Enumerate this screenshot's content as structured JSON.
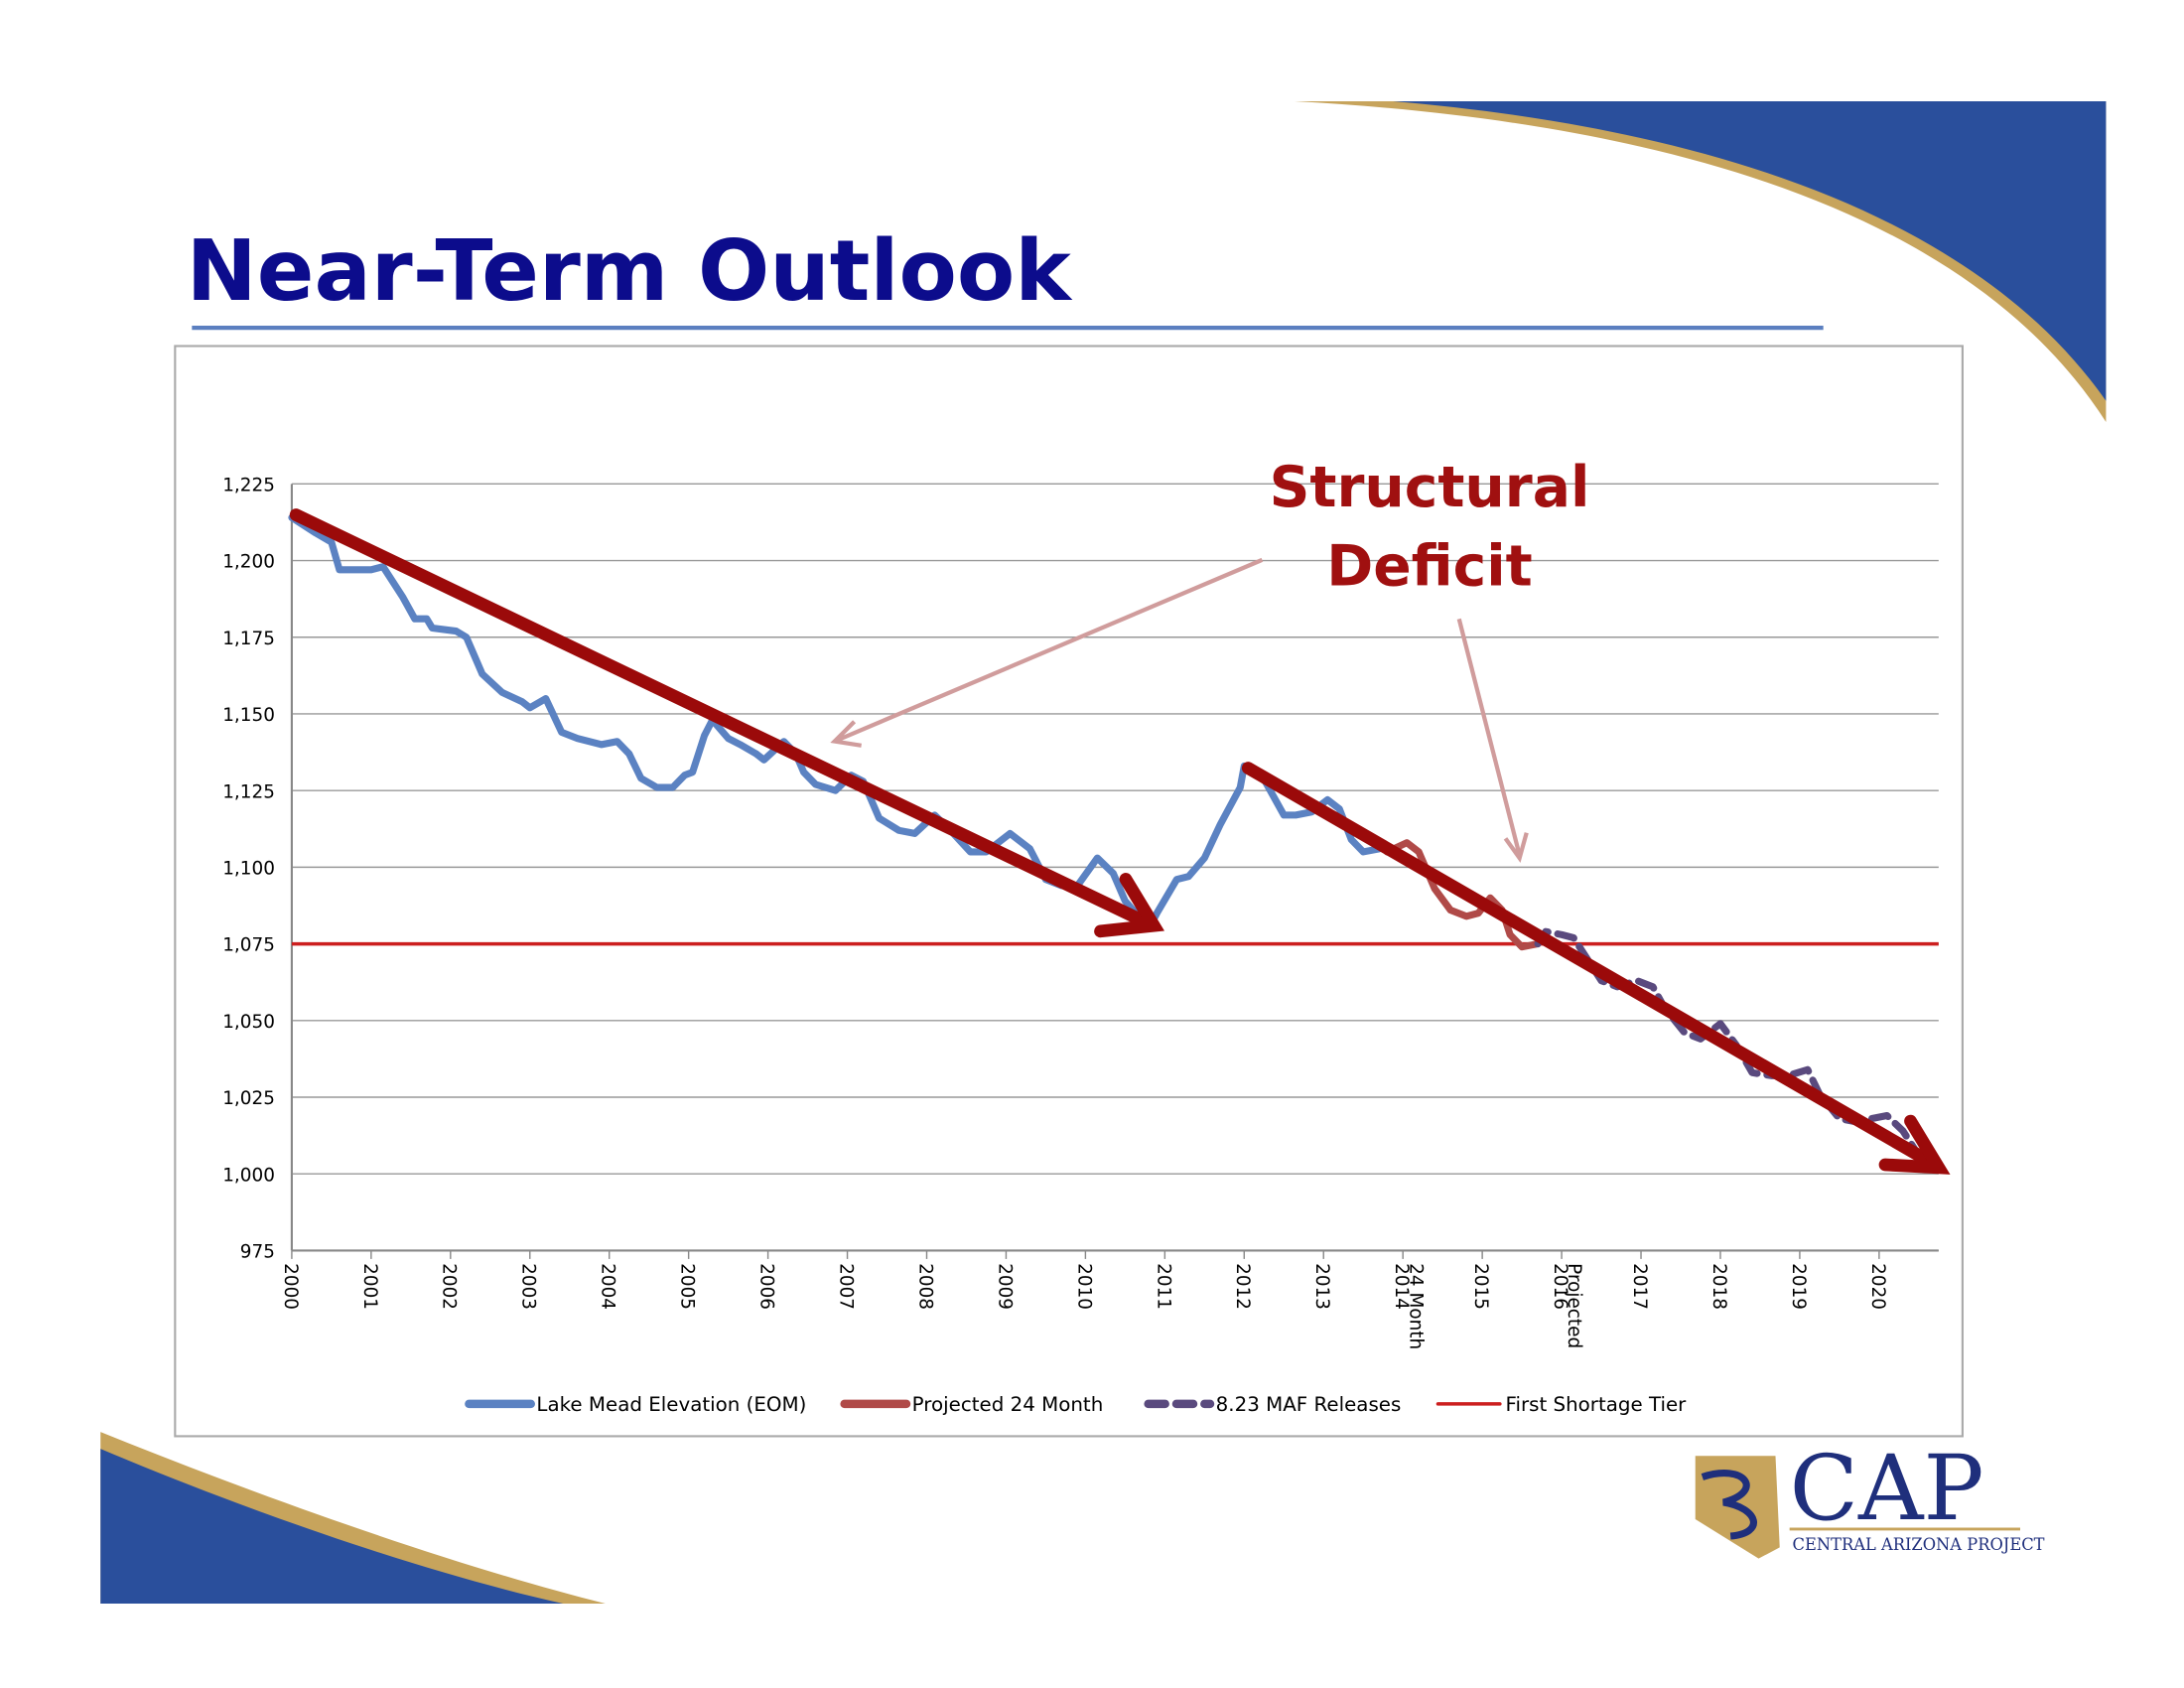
{
  "slide_title": "Near-Term Outlook",
  "logo": {
    "text": "CAP",
    "subtitle": "CENTRAL ARIZONA PROJECT"
  },
  "chart_data": {
    "type": "line",
    "annotation": [
      "Structural",
      "Deficit"
    ],
    "xlim": [
      2000,
      2020.75
    ],
    "xticks": [
      2000,
      2001,
      2002,
      2003,
      2004,
      2005,
      2006,
      2007,
      2008,
      2009,
      2010,
      2011,
      2012,
      2013,
      2014,
      2015,
      2016,
      2017,
      2018,
      2019,
      2020
    ],
    "x_notes": [
      {
        "x": 2014,
        "text": "24 Month"
      },
      {
        "x": 2016,
        "text": "Projected"
      }
    ],
    "ylim": [
      975,
      1225
    ],
    "yticks": [
      975,
      {
        "value": 1000,
        "label": "1,000"
      },
      {
        "value": 1025,
        "label": "1,025"
      },
      {
        "value": 1050,
        "label": "1,050"
      },
      {
        "value": 1075,
        "label": "1,075"
      },
      {
        "value": 1100,
        "label": "1,100"
      },
      {
        "value": 1125,
        "label": "1,125"
      },
      {
        "value": 1150,
        "label": "1,150"
      },
      {
        "value": 1175,
        "label": "1,175"
      },
      {
        "value": 1200,
        "label": "1,200"
      },
      {
        "value": 1225,
        "label": "1,225"
      }
    ],
    "grid": true,
    "legend": "bottom",
    "series": [
      {
        "name": "Lake Mead Elevation (EOM)",
        "color": "#5b82c2",
        "dashed": false,
        "x": [
          2000.0,
          2000.3,
          2000.5,
          2000.6,
          2001.0,
          2001.15,
          2001.4,
          2001.55,
          2001.7,
          2001.77,
          2002.07,
          2002.2,
          2002.4,
          2002.65,
          2002.9,
          2003.0,
          2003.2,
          2003.4,
          2003.6,
          2003.9,
          2004.1,
          2004.25,
          2004.4,
          2004.6,
          2004.8,
          2004.95,
          2005.05,
          2005.2,
          2005.3,
          2005.5,
          2005.65,
          2005.85,
          2005.95,
          2006.2,
          2006.35,
          2006.45,
          2006.6,
          2006.85,
          2007.05,
          2007.2,
          2007.4,
          2007.65,
          2007.85,
          2008.1,
          2008.3,
          2008.55,
          2008.75,
          2008.9,
          2009.05,
          2009.3,
          2009.5,
          2009.7,
          2009.9,
          2010.15,
          2010.35,
          2010.5,
          2010.8,
          2010.9,
          2011.15,
          2011.3,
          2011.5,
          2011.7,
          2011.95,
          2012.0,
          2012.2,
          2012.35,
          2012.5,
          2012.65,
          2012.85,
          2013.05,
          2013.2,
          2013.35,
          2013.5,
          2013.7
        ],
        "values": [
          1214,
          1209,
          1206,
          1197,
          1197,
          1198,
          1188,
          1181,
          1181,
          1178,
          1177,
          1175,
          1163,
          1157,
          1154,
          1152,
          1155,
          1144,
          1142,
          1140,
          1141,
          1137,
          1129,
          1126,
          1126,
          1130,
          1131,
          1143,
          1148,
          1142,
          1140,
          1137,
          1135,
          1141,
          1137,
          1131,
          1127,
          1125,
          1130,
          1128,
          1116,
          1112,
          1111,
          1117,
          1112,
          1105,
          1105,
          1108,
          1111,
          1106,
          1096,
          1094,
          1094,
          1103,
          1098,
          1089,
          1080,
          1085,
          1096,
          1097,
          1103,
          1114,
          1126,
          1133,
          1131,
          1124,
          1117,
          1117,
          1118,
          1122,
          1119,
          1109,
          1105,
          1106
        ]
      },
      {
        "name": "Projected 24 Month",
        "color": "#b04a48",
        "dashed": false,
        "x": [
          2013.8,
          2014.05,
          2014.2,
          2014.4,
          2014.6,
          2014.8,
          2014.95,
          2015.1,
          2015.25,
          2015.35,
          2015.5,
          2015.7
        ],
        "values": [
          1105,
          1108,
          1105,
          1093,
          1086,
          1084,
          1085,
          1090,
          1086,
          1078,
          1074,
          1075
        ]
      },
      {
        "name": "8.23 MAF Releases",
        "color": "#5a4a7e",
        "dashed": true,
        "x": [
          2015.7,
          2015.8,
          2016.0,
          2016.15,
          2016.3,
          2016.5,
          2016.7,
          2016.95,
          2017.15,
          2017.3,
          2017.55,
          2017.75,
          2018.0,
          2018.2,
          2018.4,
          2018.65,
          2018.85,
          2019.1,
          2019.25,
          2019.5,
          2019.7,
          2019.9,
          2020.1,
          2020.3,
          2020.5,
          2020.7
        ],
        "values": [
          1075,
          1079,
          1078,
          1077,
          1071,
          1063,
          1061,
          1063,
          1061,
          1054,
          1046,
          1044,
          1049,
          1042,
          1033,
          1032,
          1032,
          1034,
          1026,
          1018,
          1017,
          1018,
          1019,
          1014,
          1006,
          1003
        ]
      }
    ],
    "reference_line": {
      "name": "First Shortage Tier",
      "value": 1075,
      "color": "#cc1f1f"
    }
  }
}
